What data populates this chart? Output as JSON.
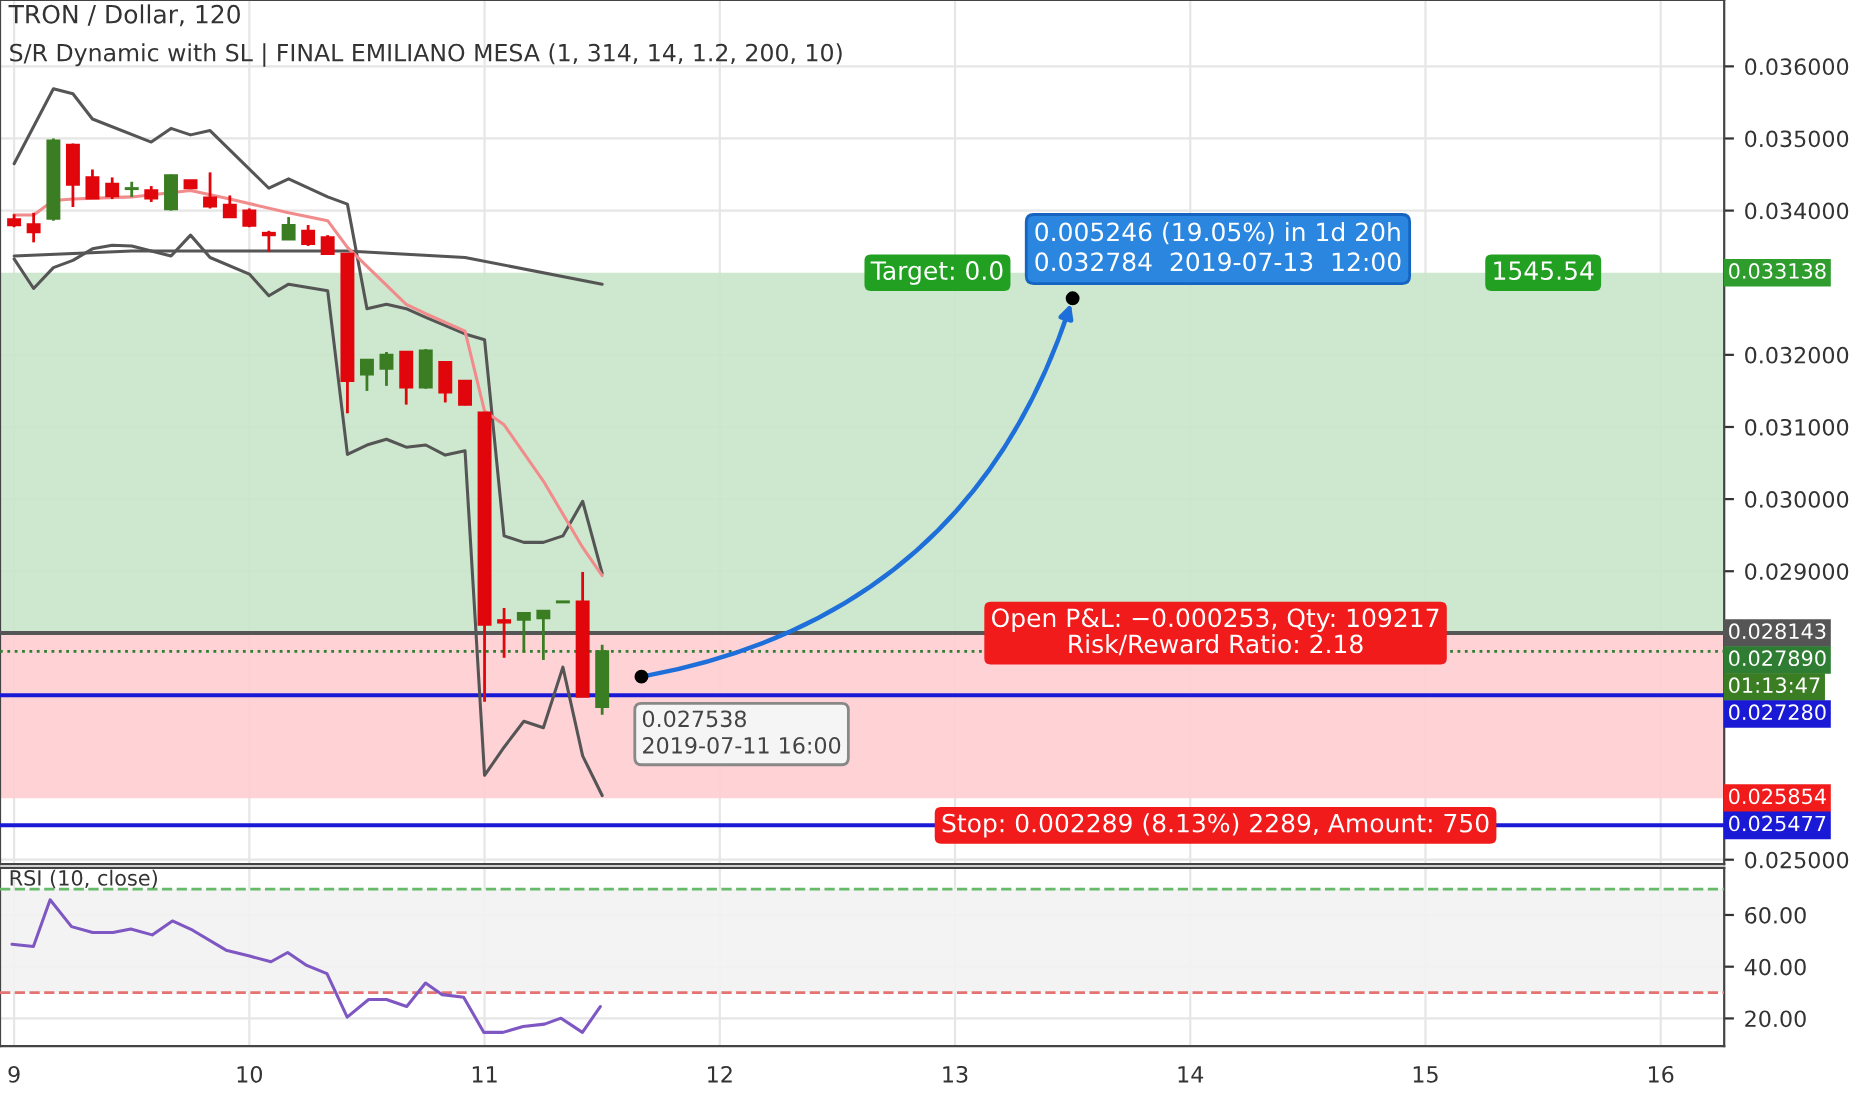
{
  "chart_data": [
    {
      "type": "candlestick",
      "title": "TRON / Dollar, 120",
      "subtitle": "S/R Dynamic with SL | FINAL EMILIANO MESA (1, 314, 14, 1.2, 200, 10)",
      "x": [
        9.0,
        9.083,
        9.167,
        9.25,
        9.333,
        9.417,
        9.5,
        9.583,
        9.667,
        9.75,
        9.833,
        9.917,
        10.0,
        10.083,
        10.167,
        10.25,
        10.333,
        10.417,
        10.5,
        10.583,
        10.667,
        10.75,
        10.833,
        10.917,
        11.0,
        11.083,
        11.167,
        11.25,
        11.333,
        11.417,
        11.5
      ],
      "ohlc": [
        [
          0.03388,
          0.03395,
          0.03377,
          0.0338
        ],
        [
          0.03381,
          0.03397,
          0.03356,
          0.0337
        ],
        [
          0.03389,
          0.035,
          0.03386,
          0.03497
        ],
        [
          0.03491,
          0.03493,
          0.03405,
          0.03436
        ],
        [
          0.03446,
          0.03457,
          0.03417,
          0.03417
        ],
        [
          0.03437,
          0.03446,
          0.03416,
          0.0342
        ],
        [
          0.0343,
          0.0344,
          0.03419,
          0.03431
        ],
        [
          0.03428,
          0.03434,
          0.03412,
          0.03417
        ],
        [
          0.03402,
          0.0345,
          0.034,
          0.03449
        ],
        [
          0.03442,
          0.03442,
          0.03431,
          0.03431
        ],
        [
          0.03418,
          0.03453,
          0.03403,
          0.03406
        ],
        [
          0.03408,
          0.03421,
          0.03391,
          0.03391
        ],
        [
          0.034,
          0.03403,
          0.03377,
          0.03379
        ],
        [
          0.03369,
          0.03372,
          0.03343,
          0.03366
        ],
        [
          0.0336,
          0.03391,
          0.0336,
          0.0338
        ],
        [
          0.03372,
          0.0338,
          0.03351,
          0.03354
        ],
        [
          0.03363,
          0.03366,
          0.0334,
          0.0334
        ],
        [
          0.0334,
          0.03341,
          0.03119,
          0.03164
        ],
        [
          0.03173,
          0.03193,
          0.0315,
          0.03193
        ],
        [
          0.03181,
          0.03204,
          0.03157,
          0.032
        ],
        [
          0.03204,
          0.03205,
          0.03131,
          0.03155
        ],
        [
          0.03155,
          0.03208,
          0.03153,
          0.03206
        ],
        [
          0.0319,
          0.03191,
          0.03134,
          0.03148
        ],
        [
          0.03164,
          0.03165,
          0.0313,
          0.03131
        ],
        [
          0.0312,
          0.0312,
          0.02719,
          0.02826
        ],
        [
          0.02832,
          0.02849,
          0.0278,
          0.02829
        ],
        [
          0.02833,
          0.02843,
          0.02787,
          0.02842
        ],
        [
          0.02835,
          0.02846,
          0.02777,
          0.02845
        ],
        [
          0.02857,
          0.02858,
          0.02857,
          0.02858
        ],
        [
          0.02858,
          0.02899,
          0.02726,
          0.02726
        ],
        [
          0.02712,
          0.02798,
          0.02701,
          0.02789
        ]
      ],
      "series": [
        {
          "type": "line",
          "color": "#555555",
          "x": [
            9.0,
            9.167,
            9.25,
            9.333,
            9.583,
            9.667,
            9.75,
            9.833,
            10.083,
            10.167,
            10.333,
            10.417,
            10.5,
            10.583,
            10.667,
            10.75,
            10.917,
            11.0,
            11.083,
            11.167,
            11.25,
            11.333,
            11.417,
            11.5
          ],
          "values": [
            0.03465,
            0.03569,
            0.03562,
            0.03527,
            0.03495,
            0.03514,
            0.03505,
            0.03511,
            0.03431,
            0.03444,
            0.03419,
            0.03409,
            0.03264,
            0.0327,
            0.03264,
            0.03252,
            0.03229,
            0.03221,
            0.02949,
            0.0294,
            0.0294,
            0.02949,
            0.02997,
            0.02897
          ]
        },
        {
          "type": "line",
          "color": "#555555",
          "x": [
            9.0,
            9.083,
            9.167,
            9.25,
            9.333,
            9.417,
            9.5,
            9.667,
            9.75,
            9.833,
            10.0,
            10.083,
            10.167,
            10.333,
            10.417,
            10.5,
            10.583,
            10.667,
            10.75,
            10.833,
            10.917,
            11.0,
            11.083,
            11.167,
            11.25,
            11.333,
            11.417,
            11.5
          ],
          "values": [
            0.03333,
            0.03292,
            0.03321,
            0.03331,
            0.03347,
            0.03352,
            0.03351,
            0.03337,
            0.03366,
            0.03335,
            0.03312,
            0.03282,
            0.03298,
            0.03289,
            0.03062,
            0.03075,
            0.03083,
            0.03072,
            0.03075,
            0.03061,
            0.03067,
            0.02617,
            0.02656,
            0.02692,
            0.02683,
            0.02767,
            0.02644,
            0.02589
          ]
        },
        {
          "type": "line",
          "color": "#555555",
          "x": [
            9.0,
            9.5,
            10.417,
            10.917,
            11.5
          ],
          "values": [
            0.03337,
            0.03344,
            0.03344,
            0.03335,
            0.03298
          ]
        },
        {
          "type": "line",
          "color": "#f28b8b",
          "x": [
            9.0,
            9.083,
            9.167,
            9.25,
            9.5,
            9.75,
            9.917,
            10.167,
            10.333,
            10.417,
            10.667,
            10.75,
            10.917,
            11.0,
            11.083,
            11.25,
            11.417,
            11.5
          ],
          "values": [
            0.03394,
            0.03394,
            0.03414,
            0.03416,
            0.03419,
            0.03428,
            0.03416,
            0.03397,
            0.03386,
            0.03349,
            0.0327,
            0.03257,
            0.03233,
            0.03122,
            0.03103,
            0.03025,
            0.02933,
            0.02894
          ]
        }
      ],
      "bands": [
        {
          "axis": "y",
          "from": 0.028143,
          "to": 0.033138,
          "label": "0.033138",
          "color": "#c8e6c9"
        },
        {
          "axis": "y",
          "from": 0.028143,
          "to": 0.025854,
          "label": "0.025854",
          "color": "#ffcdd2"
        }
      ],
      "ref_lines": [
        {
          "axis": "y",
          "value": 0.028143,
          "label": "0.028143",
          "color": "#555555",
          "line_style": "solid"
        },
        {
          "axis": "y",
          "value": 0.02789,
          "label": "0.027890",
          "color": "#2e7d32",
          "line_style": "dotted"
        },
        {
          "axis": "y",
          "value": 0.02728,
          "label": "0.027280",
          "color": "#1a1ad6",
          "line_style": "solid"
        },
        {
          "axis": "y",
          "value": 0.025477,
          "label": "0.025477",
          "color": "#1a1ad6",
          "line_style": "solid"
        }
      ],
      "annotations": [
        {
          "text": "0.027538\n2019-07-11 16:00",
          "x": 11.667,
          "y": 0.027538
        },
        {
          "text": "0.005246 (19.05%) in 1d 20h\n0.032784  2019-07-13  12:00",
          "x": 13.5,
          "y": 0.032784
        },
        "Target: 0.0",
        "1545.54",
        "Open P&L: −0.000253, Qty: 109217\nRisk/Reward Ratio: 2.18",
        "Stop: 0.002289 (8.13%) 2289, Amount: 750",
        "01:13:47"
      ],
      "xlim": [
        8.94,
        16.27
      ],
      "ylim": [
        0.02494,
        0.03692
      ],
      "xticks": [
        9,
        10,
        11,
        12,
        13,
        14,
        15,
        16
      ],
      "yticks": [
        {
          "value": 0.025,
          "label": "0.025000"
        },
        {
          "value": 0.029,
          "label": "0.029000"
        },
        {
          "value": 0.03,
          "label": "0.030000"
        },
        {
          "value": 0.031,
          "label": "0.031000"
        },
        {
          "value": 0.032,
          "label": "0.032000"
        },
        {
          "value": 0.034,
          "label": "0.034000"
        },
        {
          "value": 0.035,
          "label": "0.035000"
        },
        {
          "value": 0.036,
          "label": "0.036000"
        }
      ],
      "tick_labels": "y",
      "grid": true
    },
    {
      "type": "line",
      "title": "RSI (10, close)",
      "series": [
        {
          "color": "#7e57c2",
          "x": [
            8.991,
            9.082,
            9.153,
            9.244,
            9.334,
            9.42,
            9.496,
            9.587,
            9.673,
            9.759,
            9.901,
            10.001,
            10.092,
            10.163,
            10.244,
            10.33,
            10.416,
            10.507,
            10.583,
            10.669,
            10.749,
            10.82,
            10.911,
            10.997,
            11.078,
            11.164,
            11.255,
            11.325,
            11.416,
            11.492
          ],
          "values": [
            48.7,
            47.8,
            65.9,
            55.5,
            53.2,
            53.2,
            54.6,
            52.3,
            57.7,
            54.1,
            46.4,
            44.1,
            41.9,
            45.5,
            40.5,
            37.3,
            20.5,
            27.3,
            27.3,
            24.6,
            33.7,
            29.2,
            28.2,
            14.6,
            14.6,
            16.9,
            17.8,
            20.1,
            14.6,
            24.6
          ]
        }
      ],
      "bands": [
        {
          "axis": "y",
          "from": 30,
          "to": 70,
          "color": "#f2f2f2"
        }
      ],
      "ref_lines": [
        {
          "axis": "y",
          "value": 70,
          "color": "#66bb6a",
          "line_style": "dashed"
        },
        {
          "axis": "y",
          "value": 30,
          "color": "#e57373",
          "line_style": "dashed"
        }
      ],
      "xlim": [
        8.94,
        16.27
      ],
      "ylim": [
        9.3,
        78.2
      ],
      "xticks": [
        9,
        10,
        11,
        12,
        13,
        14,
        15,
        16
      ],
      "yticks": [
        {
          "value": 20,
          "label": "20.00"
        },
        {
          "value": 40,
          "label": "40.00"
        },
        {
          "value": 60,
          "label": "60.00"
        }
      ],
      "grid": true
    }
  ]
}
